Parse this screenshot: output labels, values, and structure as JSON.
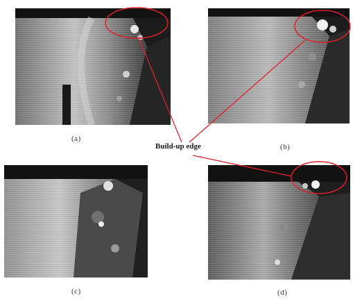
{
  "figure": {
    "annotation_label": "Build-up edge",
    "annotation_color": "#e0202a",
    "panels": [
      {
        "id": "a",
        "caption": "(a)"
      },
      {
        "id": "b",
        "caption": "(b)"
      },
      {
        "id": "c",
        "caption": "(c)"
      },
      {
        "id": "d",
        "caption": "(d)"
      }
    ]
  }
}
